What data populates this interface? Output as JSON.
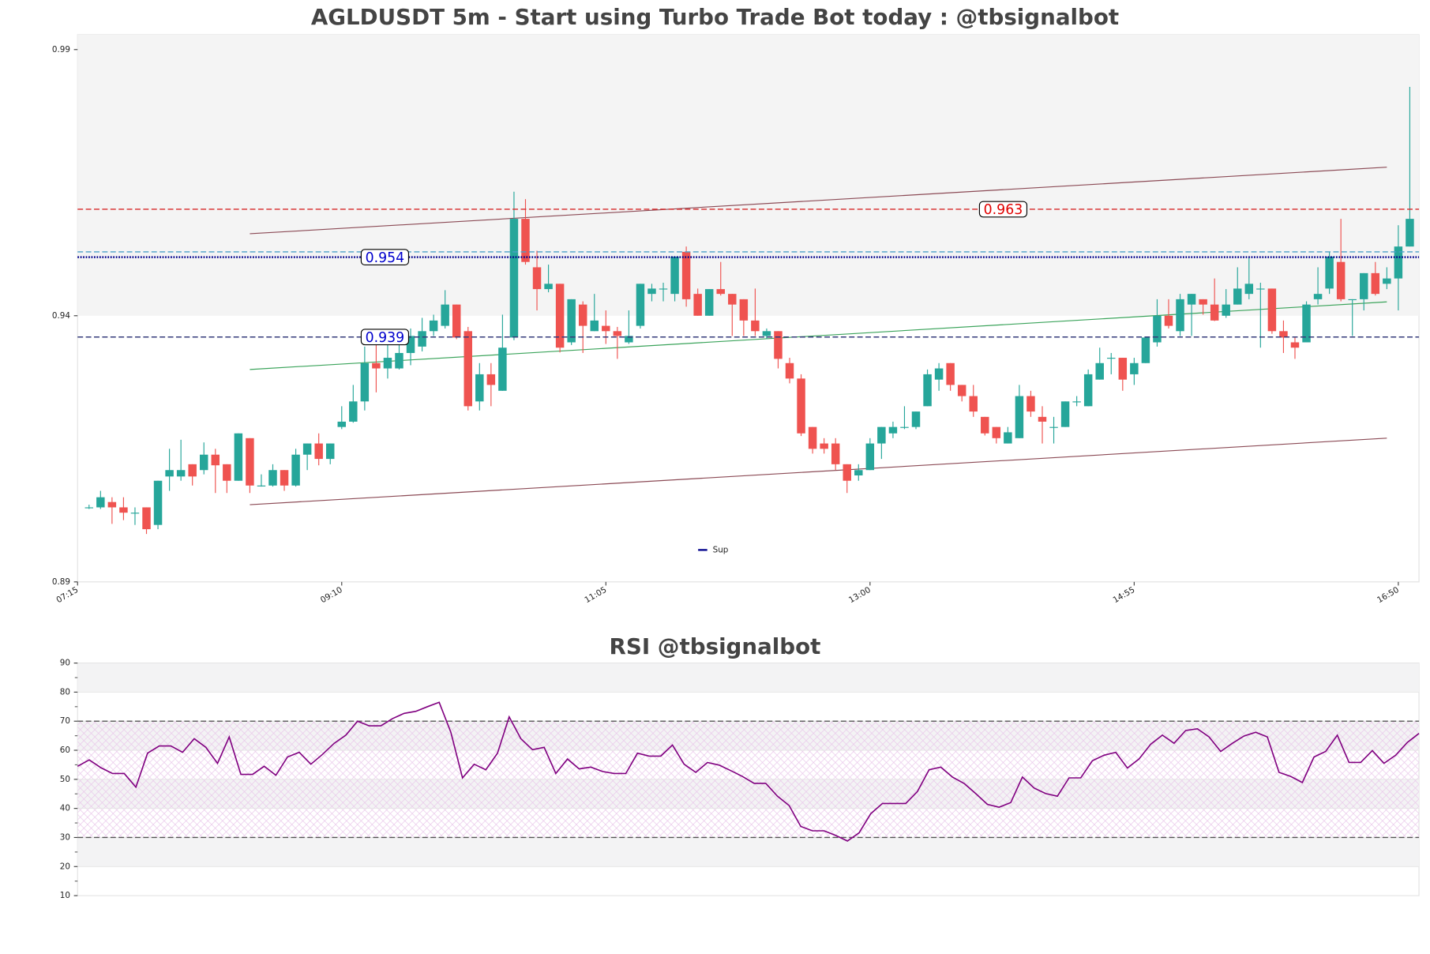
{
  "chart_data": [
    {
      "type": "candlestick",
      "title": "AGLDUSDT 5m - Start using Turbo Trade Bot today : @tbsignalbot",
      "x": [
        440,
        445,
        450,
        455,
        460,
        465,
        470,
        475,
        480,
        485,
        490,
        495,
        500,
        505,
        510,
        515,
        520,
        525,
        530,
        535,
        540,
        545,
        550,
        555,
        560,
        565,
        570,
        575,
        580,
        585,
        590,
        595,
        600,
        605,
        610,
        615,
        620,
        625,
        630,
        635,
        640,
        645,
        650,
        655,
        660,
        665,
        670,
        675,
        680,
        685,
        690,
        695,
        700,
        705,
        710,
        715,
        720,
        725,
        730,
        735,
        740,
        745,
        750,
        755,
        760,
        765,
        770,
        775,
        780,
        785,
        790,
        795,
        800,
        805,
        810,
        815,
        820,
        825,
        830,
        835,
        840,
        845,
        850,
        855,
        860,
        865,
        870,
        875,
        880,
        885,
        890,
        895,
        900,
        905,
        910,
        915,
        920,
        925,
        930,
        935,
        940,
        945,
        950,
        955,
        960,
        965,
        970,
        975,
        980,
        985,
        990,
        995,
        1000,
        1005,
        1010,
        1015
      ],
      "open": [
        0.907,
        0.907,
        0.908,
        0.907,
        0.906,
        0.907,
        0.9037,
        0.9128,
        0.9128,
        0.9151,
        0.914,
        0.9169,
        0.9151,
        0.912,
        0.92,
        0.9111,
        0.9111,
        0.914,
        0.9111,
        0.9169,
        0.919,
        0.9161,
        0.9221,
        0.9231,
        0.9269,
        0.9341,
        0.9331,
        0.9331,
        0.936,
        0.9372,
        0.9401,
        0.9411,
        0.9451,
        0.9401,
        0.9269,
        0.932,
        0.9289,
        0.9389,
        0.9612,
        0.9521,
        0.948,
        0.949,
        0.938,
        0.9451,
        0.9401,
        0.9411,
        0.9401,
        0.938,
        0.9411,
        0.9471,
        0.9481,
        0.9471,
        0.955,
        0.9471,
        0.943,
        0.948,
        0.9471,
        0.9461,
        0.9421,
        0.9392,
        0.9401,
        0.9341,
        0.9312,
        0.9221,
        0.919,
        0.919,
        0.9151,
        0.913,
        0.914,
        0.919,
        0.9209,
        0.9221,
        0.9221,
        0.926,
        0.931,
        0.9341,
        0.93,
        0.9279,
        0.924,
        0.9221,
        0.919,
        0.92,
        0.9279,
        0.924,
        0.9221,
        0.9221,
        0.9269,
        0.926,
        0.931,
        0.9351,
        0.9351,
        0.932,
        0.9341,
        0.938,
        0.943,
        0.9401,
        0.9451,
        0.9461,
        0.9451,
        0.943,
        0.9451,
        0.9471,
        0.9481,
        0.9481,
        0.9401,
        0.938,
        0.938,
        0.9461,
        0.9481,
        0.9531,
        0.9461,
        0.9461,
        0.951,
        0.949,
        0.95,
        0.956
      ],
      "high": [
        0.9075,
        0.9101,
        0.9089,
        0.9089,
        0.907,
        0.907,
        0.912,
        0.918,
        0.9197,
        0.9151,
        0.9192,
        0.918,
        0.9151,
        0.9209,
        0.92,
        0.9132,
        0.9151,
        0.914,
        0.918,
        0.919,
        0.9209,
        0.919,
        0.926,
        0.93,
        0.9372,
        0.938,
        0.938,
        0.938,
        0.9406,
        0.9426,
        0.9432,
        0.9478,
        0.9451,
        0.9409,
        0.9341,
        0.9341,
        0.9432,
        0.9663,
        0.9649,
        0.9552,
        0.9526,
        0.949,
        0.9461,
        0.9457,
        0.9471,
        0.944,
        0.9409,
        0.944,
        0.949,
        0.949,
        0.9492,
        0.9541,
        0.956,
        0.9481,
        0.948,
        0.9531,
        0.9471,
        0.9461,
        0.9481,
        0.9406,
        0.9401,
        0.9351,
        0.932,
        0.9221,
        0.92,
        0.92,
        0.9151,
        0.9151,
        0.92,
        0.9221,
        0.9231,
        0.926,
        0.925,
        0.9329,
        0.9341,
        0.9341,
        0.93,
        0.93,
        0.924,
        0.9221,
        0.9221,
        0.93,
        0.9289,
        0.926,
        0.924,
        0.9269,
        0.9279,
        0.9329,
        0.937,
        0.936,
        0.9351,
        0.9351,
        0.9389,
        0.9461,
        0.9461,
        0.9471,
        0.9471,
        0.9461,
        0.95,
        0.948,
        0.9521,
        0.9541,
        0.9492,
        0.9481,
        0.9421,
        0.9389,
        0.9457,
        0.9521,
        0.955,
        0.9612,
        0.9461,
        0.951,
        0.9531,
        0.9521,
        0.96,
        0.986
      ],
      "low": [
        0.9067,
        0.9067,
        0.9039,
        0.9046,
        0.9037,
        0.902,
        0.9029,
        0.9101,
        0.912,
        0.9111,
        0.9132,
        0.9097,
        0.9097,
        0.912,
        0.9097,
        0.9109,
        0.9109,
        0.9101,
        0.9109,
        0.914,
        0.9149,
        0.9151,
        0.9217,
        0.9229,
        0.9252,
        0.9286,
        0.9312,
        0.9329,
        0.9337,
        0.9363,
        0.9392,
        0.9406,
        0.9386,
        0.9252,
        0.9252,
        0.926,
        0.9289,
        0.9384,
        0.9526,
        0.944,
        0.9474,
        0.9361,
        0.9375,
        0.936,
        0.9401,
        0.9377,
        0.9349,
        0.9377,
        0.9406,
        0.9457,
        0.9457,
        0.9457,
        0.9447,
        0.943,
        0.943,
        0.9468,
        0.9392,
        0.9392,
        0.9392,
        0.9386,
        0.9331,
        0.9303,
        0.9204,
        0.9171,
        0.9171,
        0.914,
        0.9097,
        0.912,
        0.914,
        0.9161,
        0.92,
        0.9217,
        0.9217,
        0.926,
        0.9289,
        0.9289,
        0.9269,
        0.924,
        0.9205,
        0.919,
        0.919,
        0.92,
        0.924,
        0.919,
        0.919,
        0.9221,
        0.926,
        0.926,
        0.931,
        0.932,
        0.9289,
        0.93,
        0.9341,
        0.9372,
        0.9406,
        0.9392,
        0.9392,
        0.9432,
        0.942,
        0.9426,
        0.9451,
        0.9461,
        0.937,
        0.9396,
        0.936,
        0.9349,
        0.938,
        0.9451,
        0.9471,
        0.9457,
        0.9392,
        0.944,
        0.9468,
        0.948,
        0.944,
        0.956
      ],
      "close": [
        0.907,
        0.9089,
        0.907,
        0.906,
        0.906,
        0.9029,
        0.912,
        0.914,
        0.914,
        0.9128,
        0.9169,
        0.9149,
        0.912,
        0.9209,
        0.9111,
        0.9111,
        0.914,
        0.9111,
        0.9169,
        0.919,
        0.9161,
        0.919,
        0.9231,
        0.9269,
        0.9341,
        0.9331,
        0.9351,
        0.936,
        0.9392,
        0.9401,
        0.9421,
        0.9451,
        0.9389,
        0.926,
        0.932,
        0.93,
        0.937,
        0.9612,
        0.9531,
        0.948,
        0.949,
        0.937,
        0.9461,
        0.9411,
        0.9421,
        0.9401,
        0.9392,
        0.9392,
        0.949,
        0.9481,
        0.9481,
        0.9541,
        0.9461,
        0.943,
        0.948,
        0.9471,
        0.9451,
        0.9421,
        0.9401,
        0.9401,
        0.9349,
        0.9312,
        0.9209,
        0.918,
        0.918,
        0.9151,
        0.912,
        0.914,
        0.919,
        0.9221,
        0.9221,
        0.9221,
        0.925,
        0.932,
        0.9331,
        0.93,
        0.9279,
        0.925,
        0.9209,
        0.92,
        0.9211,
        0.9279,
        0.925,
        0.9231,
        0.9221,
        0.9269,
        0.9269,
        0.932,
        0.9341,
        0.9351,
        0.931,
        0.9341,
        0.9389,
        0.943,
        0.9411,
        0.9461,
        0.9471,
        0.9451,
        0.9421,
        0.9451,
        0.9481,
        0.949,
        0.9481,
        0.9401,
        0.9389,
        0.937,
        0.9451,
        0.9471,
        0.9541,
        0.9461,
        0.9461,
        0.951,
        0.9471,
        0.95,
        0.956,
        0.9612
      ],
      "up_color": "#26a69a",
      "down_color": "#ef5350",
      "xlim": [
        435,
        1019
      ],
      "xticks": [
        {
          "value": 435,
          "label": "07:15"
        },
        {
          "value": 550,
          "label": "09:10"
        },
        {
          "value": 665,
          "label": "11:05"
        },
        {
          "value": 780,
          "label": "13:00"
        },
        {
          "value": 895,
          "label": "14:55"
        },
        {
          "value": 1010,
          "label": "16:50"
        }
      ],
      "ylim": [
        0.893,
        0.9958
      ],
      "yticks": [
        {
          "value": 0.893,
          "label": "0.89"
        },
        {
          "value": 0.943,
          "label": "0.94"
        },
        {
          "value": 0.993,
          "label": "0.99"
        }
      ],
      "bands": [
        [
          0.943,
          0.9958
        ]
      ],
      "hlines": [
        {
          "value": 0.963,
          "color": "#d62728",
          "style": "dashed",
          "show_label": true,
          "label_color": "#e00000"
        },
        {
          "value": 0.955,
          "color": "#4a9fc8",
          "style": "dashed"
        },
        {
          "value": 0.954,
          "name": "Sup",
          "color": "#00008b",
          "style": "dotted",
          "show_label": true,
          "label_color": "#0000cc"
        },
        {
          "value": 0.939,
          "color": "#333a7a",
          "style": "dashed",
          "show_label": true,
          "label_color": "#0000cc"
        }
      ],
      "trendlines": [
        {
          "x": [
            510,
            1005
          ],
          "y": [
            0.9584,
            0.9709
          ],
          "color": "#8b4a55"
        },
        {
          "x": [
            510,
            1005
          ],
          "y": [
            0.9075,
            0.92
          ],
          "color": "#8b4a55"
        },
        {
          "x": [
            510,
            1005
          ],
          "y": [
            0.9329,
            0.9456
          ],
          "color": "#3aa35a"
        }
      ],
      "legend": "lower center"
    },
    {
      "type": "line",
      "title": "RSI @tbsignalbot",
      "x": [
        440,
        445,
        450,
        455,
        460,
        465,
        470,
        475,
        480,
        485,
        490,
        495,
        500,
        505,
        510,
        515,
        520,
        525,
        530,
        535,
        540,
        545,
        550,
        555,
        560,
        565,
        570,
        575,
        580,
        585,
        590,
        595,
        600,
        605,
        610,
        615,
        620,
        625,
        630,
        635,
        640,
        645,
        650,
        655,
        660,
        665,
        670,
        675,
        680,
        685,
        690,
        695,
        700,
        705,
        710,
        715,
        720,
        725,
        730,
        735,
        740,
        745,
        750,
        755,
        760,
        765,
        770,
        775,
        780,
        785,
        790,
        795,
        800,
        805,
        810,
        815,
        820,
        825,
        830,
        835,
        840,
        845,
        850,
        855,
        860,
        865,
        870,
        875,
        880,
        885,
        890,
        895,
        900,
        905,
        910,
        915,
        920,
        925,
        930,
        935,
        940,
        945,
        950,
        955,
        960,
        965,
        970,
        975,
        980,
        985,
        990,
        995,
        1000,
        1005,
        1010,
        1015
      ],
      "series": [
        {
          "color": "#800080",
          "values": [
            54.5,
            56.7,
            54,
            52,
            52,
            47.3,
            59,
            61.5,
            61.5,
            59.3,
            64,
            61,
            55.5,
            64.6,
            51.7,
            51.7,
            54.5,
            51.4,
            57.7,
            59.3,
            55.2,
            58.6,
            62.4,
            65.2,
            70,
            68.4,
            68.4,
            70.9,
            72.7,
            73.4,
            75,
            76.5,
            66.2,
            50.5,
            55.2,
            53.3,
            59,
            71.5,
            64,
            60.2,
            61,
            52,
            57,
            53.6,
            54.2,
            52.7,
            52,
            52,
            59,
            58,
            58,
            61.8,
            55.2,
            52.4,
            55.8,
            54.9,
            53,
            51,
            48.6,
            48.6,
            44.2,
            41,
            33.8,
            32.3,
            32.3,
            30.7,
            28.8,
            31.6,
            38.2,
            41.7,
            41.7,
            41.7,
            45.8,
            53.3,
            54.2,
            50.8,
            48.6,
            45.1,
            41.4,
            40.4,
            42,
            50.8,
            47,
            45.1,
            44.2,
            50.5,
            50.5,
            56.4,
            58.3,
            59.3,
            53.9,
            57,
            62.1,
            65.2,
            62.4,
            66.8,
            67.4,
            64.6,
            59.6,
            62.4,
            64.9,
            66.2,
            64.6,
            52.4,
            51,
            48.9,
            57.7,
            59.6,
            65.2,
            55.8,
            55.8,
            59.9,
            55.5,
            58.3,
            62.7,
            65.8
          ]
        }
      ],
      "xlim": [
        440,
        1015
      ],
      "ylim": [
        10,
        90
      ],
      "yticks": [
        10,
        20,
        30,
        40,
        50,
        60,
        70,
        80,
        90
      ],
      "yticks_minor": [
        15,
        25,
        35,
        45,
        55,
        65,
        75,
        85
      ],
      "bands": [
        [
          80,
          90
        ],
        [
          60,
          70
        ],
        [
          40,
          50
        ],
        [
          20,
          30
        ]
      ],
      "hatch": [
        30,
        70
      ],
      "hlines": [
        70,
        30
      ]
    }
  ]
}
